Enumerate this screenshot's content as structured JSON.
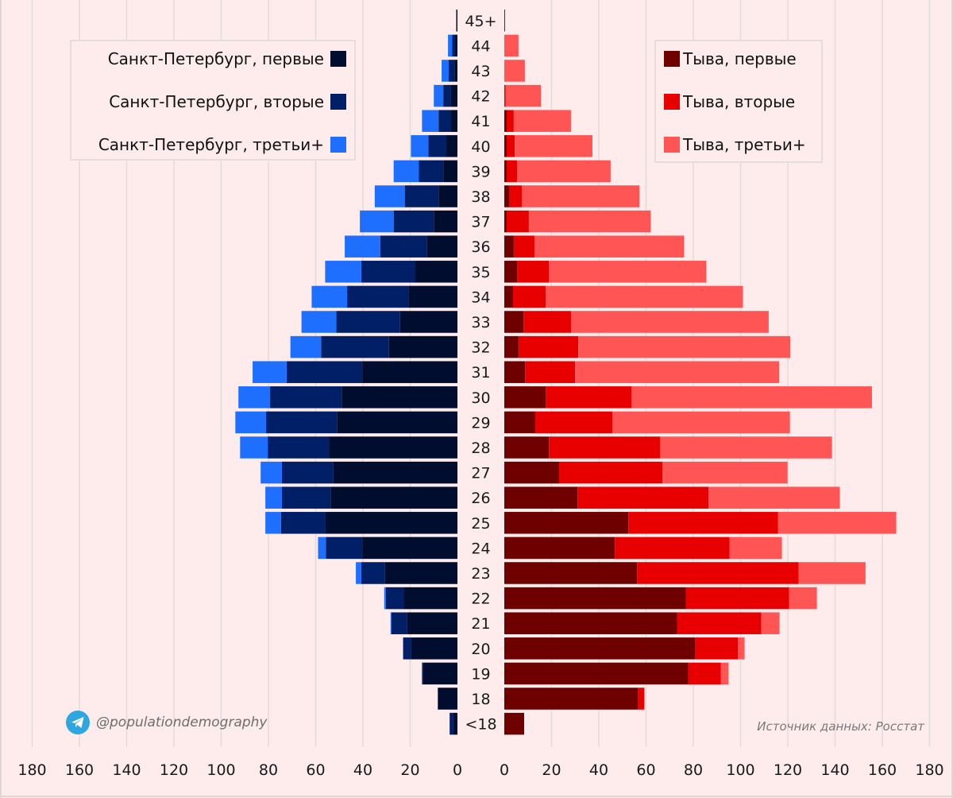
{
  "chart_data": {
    "type": "bar",
    "orientation": "horizontal-population-pyramid",
    "title": "",
    "xlabel": "",
    "ylabel": "",
    "grid": true,
    "categories": [
      "45+",
      "44",
      "43",
      "42",
      "41",
      "40",
      "39",
      "38",
      "37",
      "36",
      "35",
      "34",
      "33",
      "32",
      "31",
      "30",
      "29",
      "28",
      "27",
      "26",
      "25",
      "24",
      "23",
      "22",
      "21",
      "20",
      "19",
      "18",
      "<18"
    ],
    "left_axis": {
      "xlim": [
        0,
        180
      ],
      "ticks": [
        "180",
        "160",
        "140",
        "120",
        "100",
        "80",
        "60",
        "40",
        "20",
        "0"
      ]
    },
    "right_axis": {
      "xlim": [
        0,
        180
      ],
      "ticks": [
        "0",
        "20",
        "40",
        "60",
        "80",
        "100",
        "120",
        "140",
        "160",
        "180"
      ]
    },
    "left_series": [
      {
        "name": "Санкт-Петербург, первые",
        "color": "#000d2e",
        "values": [
          0.5,
          1,
          1.3,
          2.7,
          3,
          4.7,
          6,
          8,
          10,
          13,
          18,
          20.7,
          24.3,
          29,
          40.3,
          49,
          51,
          54.3,
          52.7,
          53.7,
          56,
          40.3,
          30.7,
          22.7,
          21.3,
          19.7,
          14.7,
          8.3,
          1.7
        ]
      },
      {
        "name": "Санкт-Петербург, вторые",
        "color": "#001f66",
        "values": [
          0,
          1.3,
          2.4,
          3.3,
          5,
          7.6,
          10.3,
          14.3,
          17,
          19.7,
          22.7,
          26,
          27,
          28.7,
          32,
          30.3,
          30,
          26,
          21.6,
          20.6,
          18.7,
          15.4,
          10,
          7.6,
          6.7,
          3.3,
          0.3,
          0,
          1.6
        ]
      },
      {
        "name": "Санкт-Петербург, третьи+",
        "color": "#1f6fff",
        "values": [
          0,
          1.7,
          3,
          4,
          7,
          7.4,
          10.7,
          12.7,
          14.3,
          15,
          15.3,
          15,
          14.7,
          13,
          14.4,
          13.4,
          13,
          11.7,
          9,
          7,
          6.6,
          3.3,
          2.3,
          0.7,
          0.3,
          0,
          0,
          0,
          0
        ]
      }
    ],
    "right_series": [
      {
        "name": "Тыва, первые",
        "color": "#6e0000",
        "values": [
          0.3,
          0,
          0,
          0,
          1,
          1,
          1,
          2,
          1,
          4,
          5.4,
          3.7,
          8.1,
          6,
          8.8,
          17.5,
          13.1,
          18.9,
          23.2,
          31,
          52.5,
          46.8,
          56.2,
          76.8,
          73.1,
          80.8,
          77.8,
          56.6,
          8.4
        ]
      },
      {
        "name": "Тыва, вторые",
        "color": "#e80000",
        "values": [
          0,
          0,
          0,
          0.5,
          3,
          3.4,
          4.4,
          5.4,
          9.4,
          8.8,
          13.5,
          13.8,
          20.2,
          25.3,
          21.2,
          36.4,
          32.7,
          47.1,
          43.8,
          55.5,
          63.3,
          48.5,
          68.4,
          43.7,
          35.7,
          18.1,
          13.8,
          2.7,
          0
        ]
      },
      {
        "name": "Тыва, третьи+",
        "color": "#ff5555",
        "values": [
          0,
          6,
          8.7,
          15,
          24.2,
          32.9,
          39.6,
          49.8,
          51.6,
          63.3,
          66.6,
          83.5,
          83.6,
          89.7,
          86.3,
          101.7,
          75.1,
          72.7,
          52.9,
          55.5,
          50.1,
          22.2,
          28.3,
          11.8,
          7.7,
          2.8,
          3.3,
          0,
          0
        ]
      }
    ],
    "legend_left_placement": "top-left",
    "legend_right_placement": "top-right"
  },
  "attribution": {
    "handle": "@populationdemography",
    "icon": "telegram-icon",
    "source": "Источник данных: Росстат"
  },
  "colors": {
    "background": "#fdeceb",
    "grid": "#e3dada"
  }
}
